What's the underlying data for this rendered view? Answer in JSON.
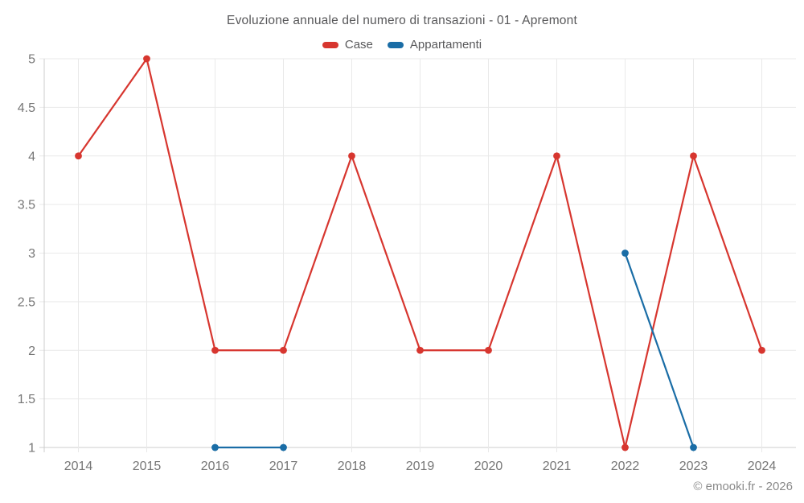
{
  "chart_data": {
    "type": "line",
    "title": "Evoluzione annuale del numero di transazioni - 01 - Apremont",
    "categories": [
      "2014",
      "2015",
      "2016",
      "2017",
      "2018",
      "2019",
      "2020",
      "2021",
      "2022",
      "2023",
      "2024"
    ],
    "series": [
      {
        "name": "Case",
        "color": "#d7362f",
        "values": [
          4,
          5,
          2,
          2,
          4,
          2,
          2,
          4,
          1,
          4,
          2
        ]
      },
      {
        "name": "Appartamenti",
        "color": "#1a6da6",
        "values": [
          null,
          null,
          1,
          1,
          null,
          null,
          null,
          null,
          3,
          1,
          null
        ]
      }
    ],
    "xlabel": "",
    "ylabel": "",
    "ylim": [
      1,
      5
    ],
    "ytick_step": 0.5,
    "grid": true,
    "legend_position": "top"
  },
  "footer": {
    "credit": "© emooki.fr - 2026"
  }
}
